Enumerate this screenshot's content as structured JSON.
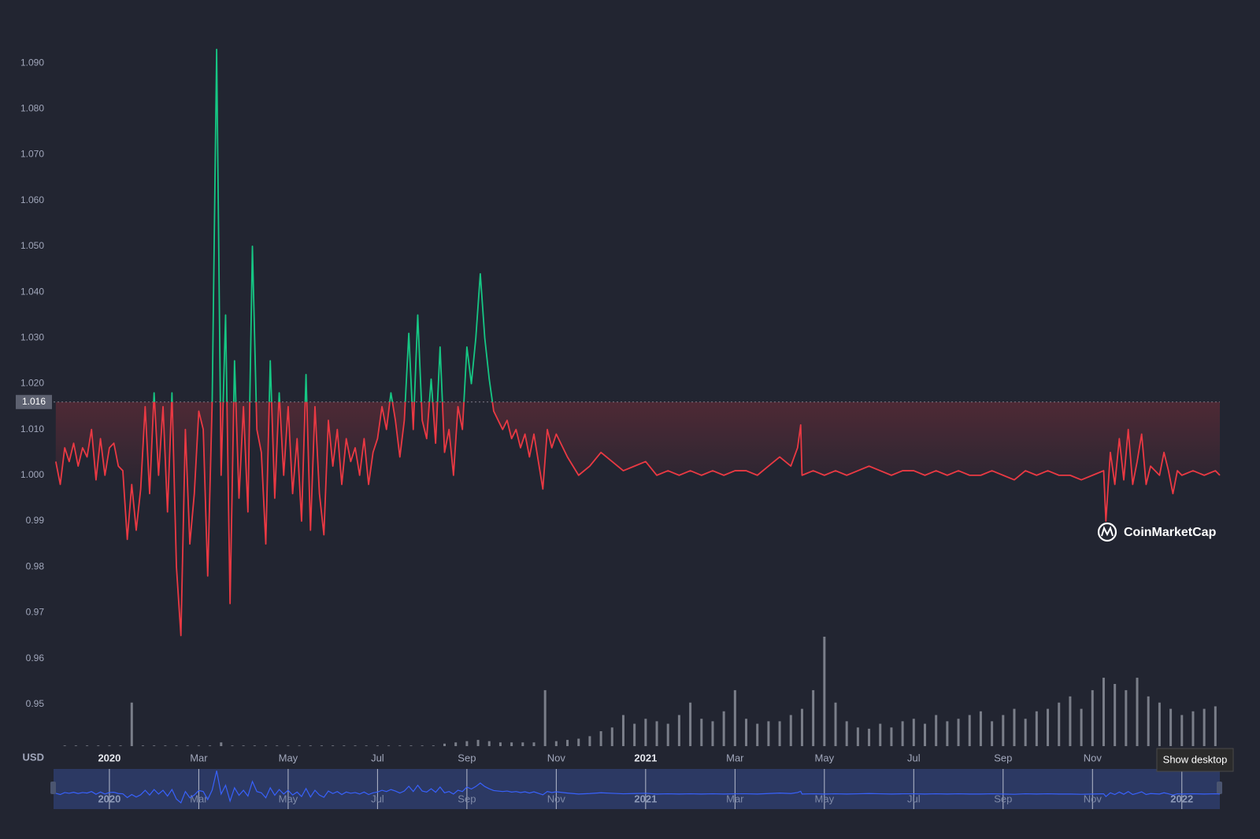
{
  "chart_data": {
    "type": "line",
    "currency_label": "USD",
    "watermark": "CoinMarketCap",
    "tooltip": "Show desktop",
    "xlim": [
      -1.25,
      24.85
    ],
    "ylim": [
      0.94,
      1.1
    ],
    "xticks": [
      {
        "value": 0,
        "label": "2020"
      },
      {
        "value": 2,
        "label": "Mar"
      },
      {
        "value": 4,
        "label": "May"
      },
      {
        "value": 6,
        "label": "Jul"
      },
      {
        "value": 8,
        "label": "Sep"
      },
      {
        "value": 10,
        "label": "Nov"
      },
      {
        "value": 12,
        "label": "2021"
      },
      {
        "value": 14,
        "label": "Mar"
      },
      {
        "value": 16,
        "label": "May"
      },
      {
        "value": 18,
        "label": "Jul"
      },
      {
        "value": 20,
        "label": "Sep"
      },
      {
        "value": 22,
        "label": "Nov"
      }
    ],
    "yticks": [
      {
        "value": 1.09,
        "label": "1.090"
      },
      {
        "value": 1.08,
        "label": "1.080"
      },
      {
        "value": 1.07,
        "label": "1.070"
      },
      {
        "value": 1.06,
        "label": "1.060"
      },
      {
        "value": 1.05,
        "label": "1.050"
      },
      {
        "value": 1.04,
        "label": "1.040"
      },
      {
        "value": 1.03,
        "label": "1.030"
      },
      {
        "value": 1.02,
        "label": "1.020"
      },
      {
        "value": 1.01,
        "label": "1.010"
      },
      {
        "value": 1,
        "label": "1.000"
      },
      0.99,
      0.98,
      0.97,
      0.96,
      0.95
    ],
    "reference": 1.016,
    "up_color": "#16c784",
    "down_color": "#ea3943",
    "series": [
      {
        "x": [
          -1.2,
          -1.1,
          -1.0,
          -0.9,
          -0.8,
          -0.7,
          -0.6,
          -0.5,
          -0.4,
          -0.3,
          -0.2,
          -0.1,
          0.0,
          0.1,
          0.2,
          0.3,
          0.4,
          0.5,
          0.6,
          0.7,
          0.8,
          0.9,
          1.0,
          1.1,
          1.2,
          1.3,
          1.4,
          1.5,
          1.6,
          1.7,
          1.8,
          1.9,
          2.0,
          2.1,
          2.2,
          2.3,
          2.4,
          2.5,
          2.6,
          2.7,
          2.8,
          2.9,
          3.0,
          3.1,
          3.2,
          3.3,
          3.4,
          3.5,
          3.6,
          3.7,
          3.8,
          3.9,
          4.0,
          4.1,
          4.2,
          4.3,
          4.4,
          4.5,
          4.6,
          4.7,
          4.8,
          4.9,
          5.0,
          5.1,
          5.2,
          5.3,
          5.4,
          5.5,
          5.6,
          5.7,
          5.8,
          5.9,
          6.0,
          6.1,
          6.2,
          6.3,
          6.4,
          6.5,
          6.6,
          6.7,
          6.8,
          6.9,
          7.0,
          7.1,
          7.2,
          7.3,
          7.4,
          7.5,
          7.6,
          7.7,
          7.8,
          7.9,
          8.0,
          8.1,
          8.2,
          8.3,
          8.4,
          8.5,
          8.6,
          8.7,
          8.8,
          8.9,
          9.0,
          9.1,
          9.2,
          9.3,
          9.4,
          9.5,
          9.6,
          9.7,
          9.8,
          9.9,
          10.0,
          10.25,
          10.5,
          10.75,
          11,
          11.25,
          11.5,
          11.75,
          12,
          12.25,
          12.5,
          12.75,
          13,
          13.25,
          13.5,
          13.75,
          14,
          14.25,
          14.5,
          14.75,
          15,
          15.25,
          15.4,
          15.47,
          15.5,
          15.75,
          16,
          16.25,
          16.5,
          16.75,
          17,
          17.25,
          17.5,
          17.75,
          18,
          18.25,
          18.5,
          18.75,
          19,
          19.25,
          19.5,
          19.75,
          20,
          20.25,
          20.5,
          20.75,
          21,
          21.25,
          21.5,
          21.75,
          22,
          22.25,
          22.3,
          22.4,
          22.5,
          22.6,
          22.7,
          22.8,
          22.9,
          23,
          23.1,
          23.2,
          23.3,
          23.5,
          23.6,
          23.7,
          23.8,
          23.9,
          24,
          24.25,
          24.5,
          24.75,
          24.85
        ],
        "values": [
          1.003,
          0.998,
          1.006,
          1.003,
          1.007,
          1.002,
          1.006,
          1.004,
          1.01,
          0.999,
          1.008,
          1.0,
          1.006,
          1.007,
          1.002,
          1.001,
          0.986,
          0.998,
          0.988,
          0.997,
          1.015,
          0.996,
          1.018,
          1.0,
          1.015,
          0.992,
          1.018,
          0.98,
          0.965,
          1.01,
          0.985,
          0.996,
          1.014,
          1.01,
          0.978,
          1.016,
          1.093,
          1.0,
          1.035,
          0.972,
          1.025,
          0.995,
          1.015,
          0.992,
          1.05,
          1.01,
          1.005,
          0.985,
          1.025,
          0.995,
          1.018,
          1.0,
          1.015,
          0.996,
          1.008,
          0.99,
          1.022,
          0.988,
          1.015,
          0.996,
          0.987,
          1.012,
          1.002,
          1.01,
          0.998,
          1.008,
          1.003,
          1.006,
          1.0,
          1.008,
          0.998,
          1.005,
          1.008,
          1.015,
          1.01,
          1.018,
          1.012,
          1.004,
          1.012,
          1.031,
          1.01,
          1.035,
          1.012,
          1.008,
          1.021,
          1.007,
          1.028,
          1.005,
          1.01,
          1.0,
          1.015,
          1.01,
          1.028,
          1.02,
          1.03,
          1.044,
          1.03,
          1.021,
          1.014,
          1.012,
          1.01,
          1.012,
          1.008,
          1.01,
          1.006,
          1.009,
          1.004,
          1.009,
          1.003,
          0.997,
          1.01,
          1.006,
          1.009,
          1.004,
          1.0,
          1.002,
          1.005,
          1.003,
          1.001,
          1.002,
          1.003,
          1.0,
          1.001,
          1.0,
          1.001,
          1.0,
          1.001,
          1.0,
          1.001,
          1.001,
          1.0,
          1.002,
          1.004,
          1.002,
          1.006,
          1.011,
          1.0,
          1.001,
          1.0,
          1.001,
          1.0,
          1.001,
          1.002,
          1.001,
          1.0,
          1.001,
          1.001,
          1.0,
          1.001,
          1.0,
          1.001,
          1.0,
          1.0,
          1.001,
          1.0,
          0.999,
          1.001,
          1.0,
          1.001,
          1.0,
          1.0,
          0.999,
          1.0,
          1.001,
          0.99,
          1.005,
          0.998,
          1.008,
          0.999,
          1.01,
          0.998,
          1.003,
          1.009,
          0.998,
          1.002,
          1.0,
          1.005,
          1.001,
          0.996,
          1.001,
          1.0,
          1.001,
          1.0,
          1.001,
          1.0
        ]
      }
    ],
    "volume": {
      "color": "#8a8e99",
      "x": [
        -1,
        -0.75,
        -0.5,
        -0.25,
        0,
        0.25,
        0.5,
        0.75,
        1,
        1.25,
        1.5,
        1.75,
        2,
        2.25,
        2.5,
        2.75,
        3,
        3.25,
        3.5,
        3.75,
        4,
        4.25,
        4.5,
        4.75,
        5,
        5.25,
        5.5,
        5.75,
        6,
        6.25,
        6.5,
        6.75,
        7,
        7.25,
        7.5,
        7.75,
        8,
        8.25,
        8.5,
        8.75,
        9,
        9.25,
        9.5,
        9.75,
        10,
        10.25,
        10.5,
        10.75,
        11,
        11.25,
        11.5,
        11.75,
        12,
        12.25,
        12.5,
        12.75,
        13,
        13.25,
        13.5,
        13.75,
        14,
        14.25,
        14.5,
        14.75,
        15,
        15.25,
        15.5,
        15.75,
        16,
        16.25,
        16.5,
        16.75,
        17,
        17.25,
        17.5,
        17.75,
        18,
        18.25,
        18.5,
        18.75,
        19,
        19.25,
        19.5,
        19.75,
        20,
        20.25,
        20.5,
        20.75,
        21,
        21.25,
        21.5,
        21.75,
        22,
        22.25,
        22.5,
        22.75,
        23,
        23.25,
        23.5,
        23.75,
        24,
        24.25,
        24.5,
        24.75
      ],
      "values": [
        0.5,
        0.5,
        0.5,
        0.5,
        0.5,
        0.5,
        35,
        0.5,
        0.5,
        0.5,
        0.5,
        0.5,
        0.5,
        0.5,
        3,
        0.5,
        0.5,
        0.5,
        0.5,
        0.5,
        0.5,
        0.5,
        0.5,
        0.5,
        0.5,
        0.5,
        0.5,
        0.5,
        0.5,
        0.5,
        0.5,
        0.5,
        0.5,
        0.5,
        2,
        3,
        4,
        5,
        4,
        3,
        3,
        3,
        3,
        45,
        4,
        5,
        6,
        8,
        12,
        15,
        25,
        18,
        22,
        20,
        18,
        25,
        35,
        22,
        20,
        28,
        45,
        22,
        18,
        20,
        20,
        25,
        30,
        45,
        88,
        35,
        20,
        15,
        14,
        18,
        15,
        20,
        22,
        18,
        25,
        20,
        22,
        25,
        28,
        20,
        25,
        30,
        22,
        28,
        30,
        35,
        40,
        30,
        45,
        55,
        50,
        45,
        55,
        40,
        35,
        30,
        25,
        28,
        30,
        32
      ]
    },
    "y2lim": [
      0,
      100
    ],
    "navigator": {
      "color": "#3861fb",
      "xticks": [
        {
          "value": 0,
          "label": "2020"
        },
        {
          "value": 2,
          "label": "Mar"
        },
        {
          "value": 4,
          "label": "May"
        },
        {
          "value": 6,
          "label": "Jul"
        },
        {
          "value": 8,
          "label": "Sep"
        },
        {
          "value": 10,
          "label": "Nov"
        },
        {
          "value": 12,
          "label": "2021"
        },
        {
          "value": 14,
          "label": "Mar"
        },
        {
          "value": 16,
          "label": "May"
        },
        {
          "value": 18,
          "label": "Jul"
        },
        {
          "value": 20,
          "label": "Sep"
        },
        {
          "value": 22,
          "label": "Nov"
        },
        {
          "value": 24,
          "label": "2022"
        }
      ]
    }
  }
}
